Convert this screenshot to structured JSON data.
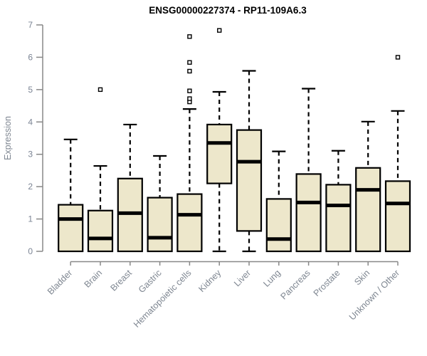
{
  "chart_data": {
    "type": "boxplot",
    "title": "ENSG00000227374 - RP11-109A6.3",
    "ylabel": "Expression",
    "xlabel": "",
    "ylim": [
      0,
      7
    ],
    "y_ticks": [
      0,
      1,
      2,
      3,
      4,
      5,
      6,
      7
    ],
    "grid": false,
    "legend": "none",
    "categories": [
      "Bladder",
      "Brain",
      "Breast",
      "Gastric",
      "Hematopoietic cells",
      "Kidney",
      "Liver",
      "Lung",
      "Pancreas",
      "Prostate",
      "Skin",
      "Unknown / Other"
    ],
    "boxes": [
      {
        "category": "Bladder",
        "min": 0,
        "q1": 0,
        "median": 1.0,
        "q3": 1.44,
        "max": 3.46,
        "outliers": []
      },
      {
        "category": "Brain",
        "min": 0,
        "q1": 0,
        "median": 0.4,
        "q3": 1.26,
        "max": 2.64,
        "outliers": [
          5.0
        ]
      },
      {
        "category": "Breast",
        "min": 0,
        "q1": 0,
        "median": 1.18,
        "q3": 2.25,
        "max": 3.92,
        "outliers": []
      },
      {
        "category": "Gastric",
        "min": 0,
        "q1": 0,
        "median": 0.42,
        "q3": 1.66,
        "max": 2.95,
        "outliers": []
      },
      {
        "category": "Hematopoietic cells",
        "min": 0,
        "q1": 0,
        "median": 1.13,
        "q3": 1.77,
        "max": 4.4,
        "outliers": [
          4.62,
          4.72,
          4.96,
          5.57,
          5.84,
          6.64
        ]
      },
      {
        "category": "Kidney",
        "min": 0,
        "q1": 2.1,
        "median": 3.35,
        "q3": 3.92,
        "max": 4.93,
        "outliers": [
          6.83
        ]
      },
      {
        "category": "Liver",
        "min": 0,
        "q1": 0.63,
        "median": 2.77,
        "q3": 3.75,
        "max": 5.58,
        "outliers": []
      },
      {
        "category": "Lung",
        "min": 0,
        "q1": 0,
        "median": 0.38,
        "q3": 1.62,
        "max": 3.09,
        "outliers": []
      },
      {
        "category": "Pancreas",
        "min": 0,
        "q1": 0,
        "median": 1.51,
        "q3": 2.39,
        "max": 5.03,
        "outliers": []
      },
      {
        "category": "Prostate",
        "min": 0,
        "q1": 0,
        "median": 1.42,
        "q3": 2.06,
        "max": 3.11,
        "outliers": []
      },
      {
        "category": "Skin",
        "min": 0,
        "q1": 0,
        "median": 1.9,
        "q3": 2.58,
        "max": 4.01,
        "outliers": []
      },
      {
        "category": "Unknown / Other",
        "min": 0,
        "q1": 0,
        "median": 1.48,
        "q3": 2.17,
        "max": 4.34,
        "outliers": [
          6.0
        ]
      }
    ],
    "colors": {
      "box_fill": "#ede7cb",
      "box_border": "#000000",
      "median": "#000000",
      "whisker": "#000000",
      "outlier_stroke": "#000000",
      "outlier_fill": "#ffffff",
      "axis": "#888888",
      "tick_label": "#7b8494",
      "category_label": "#7e8691",
      "title": "#000000",
      "background": "#ffffff"
    }
  }
}
